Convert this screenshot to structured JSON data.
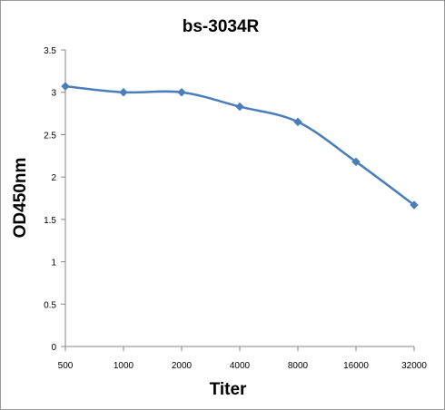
{
  "chart_data": {
    "type": "line",
    "title": "bs-3034R",
    "xlabel": "Titer",
    "ylabel": "OD450nm",
    "categories": [
      "500",
      "1000",
      "2000",
      "4000",
      "8000",
      "16000",
      "32000"
    ],
    "series": [
      {
        "values": [
          3.07,
          3.0,
          3.0,
          2.83,
          2.65,
          2.18,
          1.67
        ],
        "color": "#4a7ebb",
        "marker": "diamond"
      }
    ],
    "ylim": [
      0,
      3.5
    ],
    "yticks": [
      "0",
      "0.5",
      "1",
      "1.5",
      "2",
      "2.5",
      "3",
      "3.5"
    ],
    "grid": false,
    "legend": "none",
    "smooth": true
  }
}
